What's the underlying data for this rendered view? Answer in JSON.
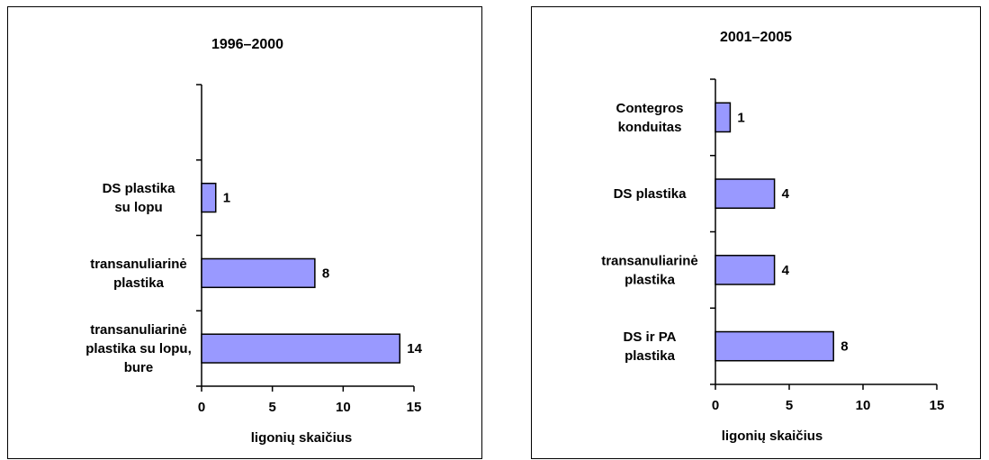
{
  "chart_data": [
    {
      "type": "bar",
      "orientation": "horizontal",
      "title": "1996–2000",
      "xlabel": "ligonių skaičius",
      "xlim": [
        0,
        15
      ],
      "xticks": [
        0,
        5,
        10,
        15
      ],
      "slots": 4,
      "categories": [
        [
          "DS plastika",
          "su  lopu"
        ],
        [
          "transanuliarinė",
          "plastika"
        ],
        [
          "transanuliarinė",
          "plastika su lopu,",
          "bure"
        ]
      ],
      "values": [
        1,
        8,
        14
      ],
      "bar_color": "#9999ff"
    },
    {
      "type": "bar",
      "orientation": "horizontal",
      "title": "2001–2005",
      "xlabel": "ligonių skaičius",
      "xlim": [
        0,
        15
      ],
      "xticks": [
        0,
        5,
        10,
        15
      ],
      "slots": 4,
      "categories": [
        [
          "Contegros",
          "konduitas"
        ],
        [
          "DS plastika"
        ],
        [
          "transanuliarinė",
          "plastika"
        ],
        [
          "DS ir PA",
          "plastika"
        ]
      ],
      "values": [
        1,
        4,
        4,
        8
      ],
      "bar_color": "#9999ff"
    }
  ]
}
